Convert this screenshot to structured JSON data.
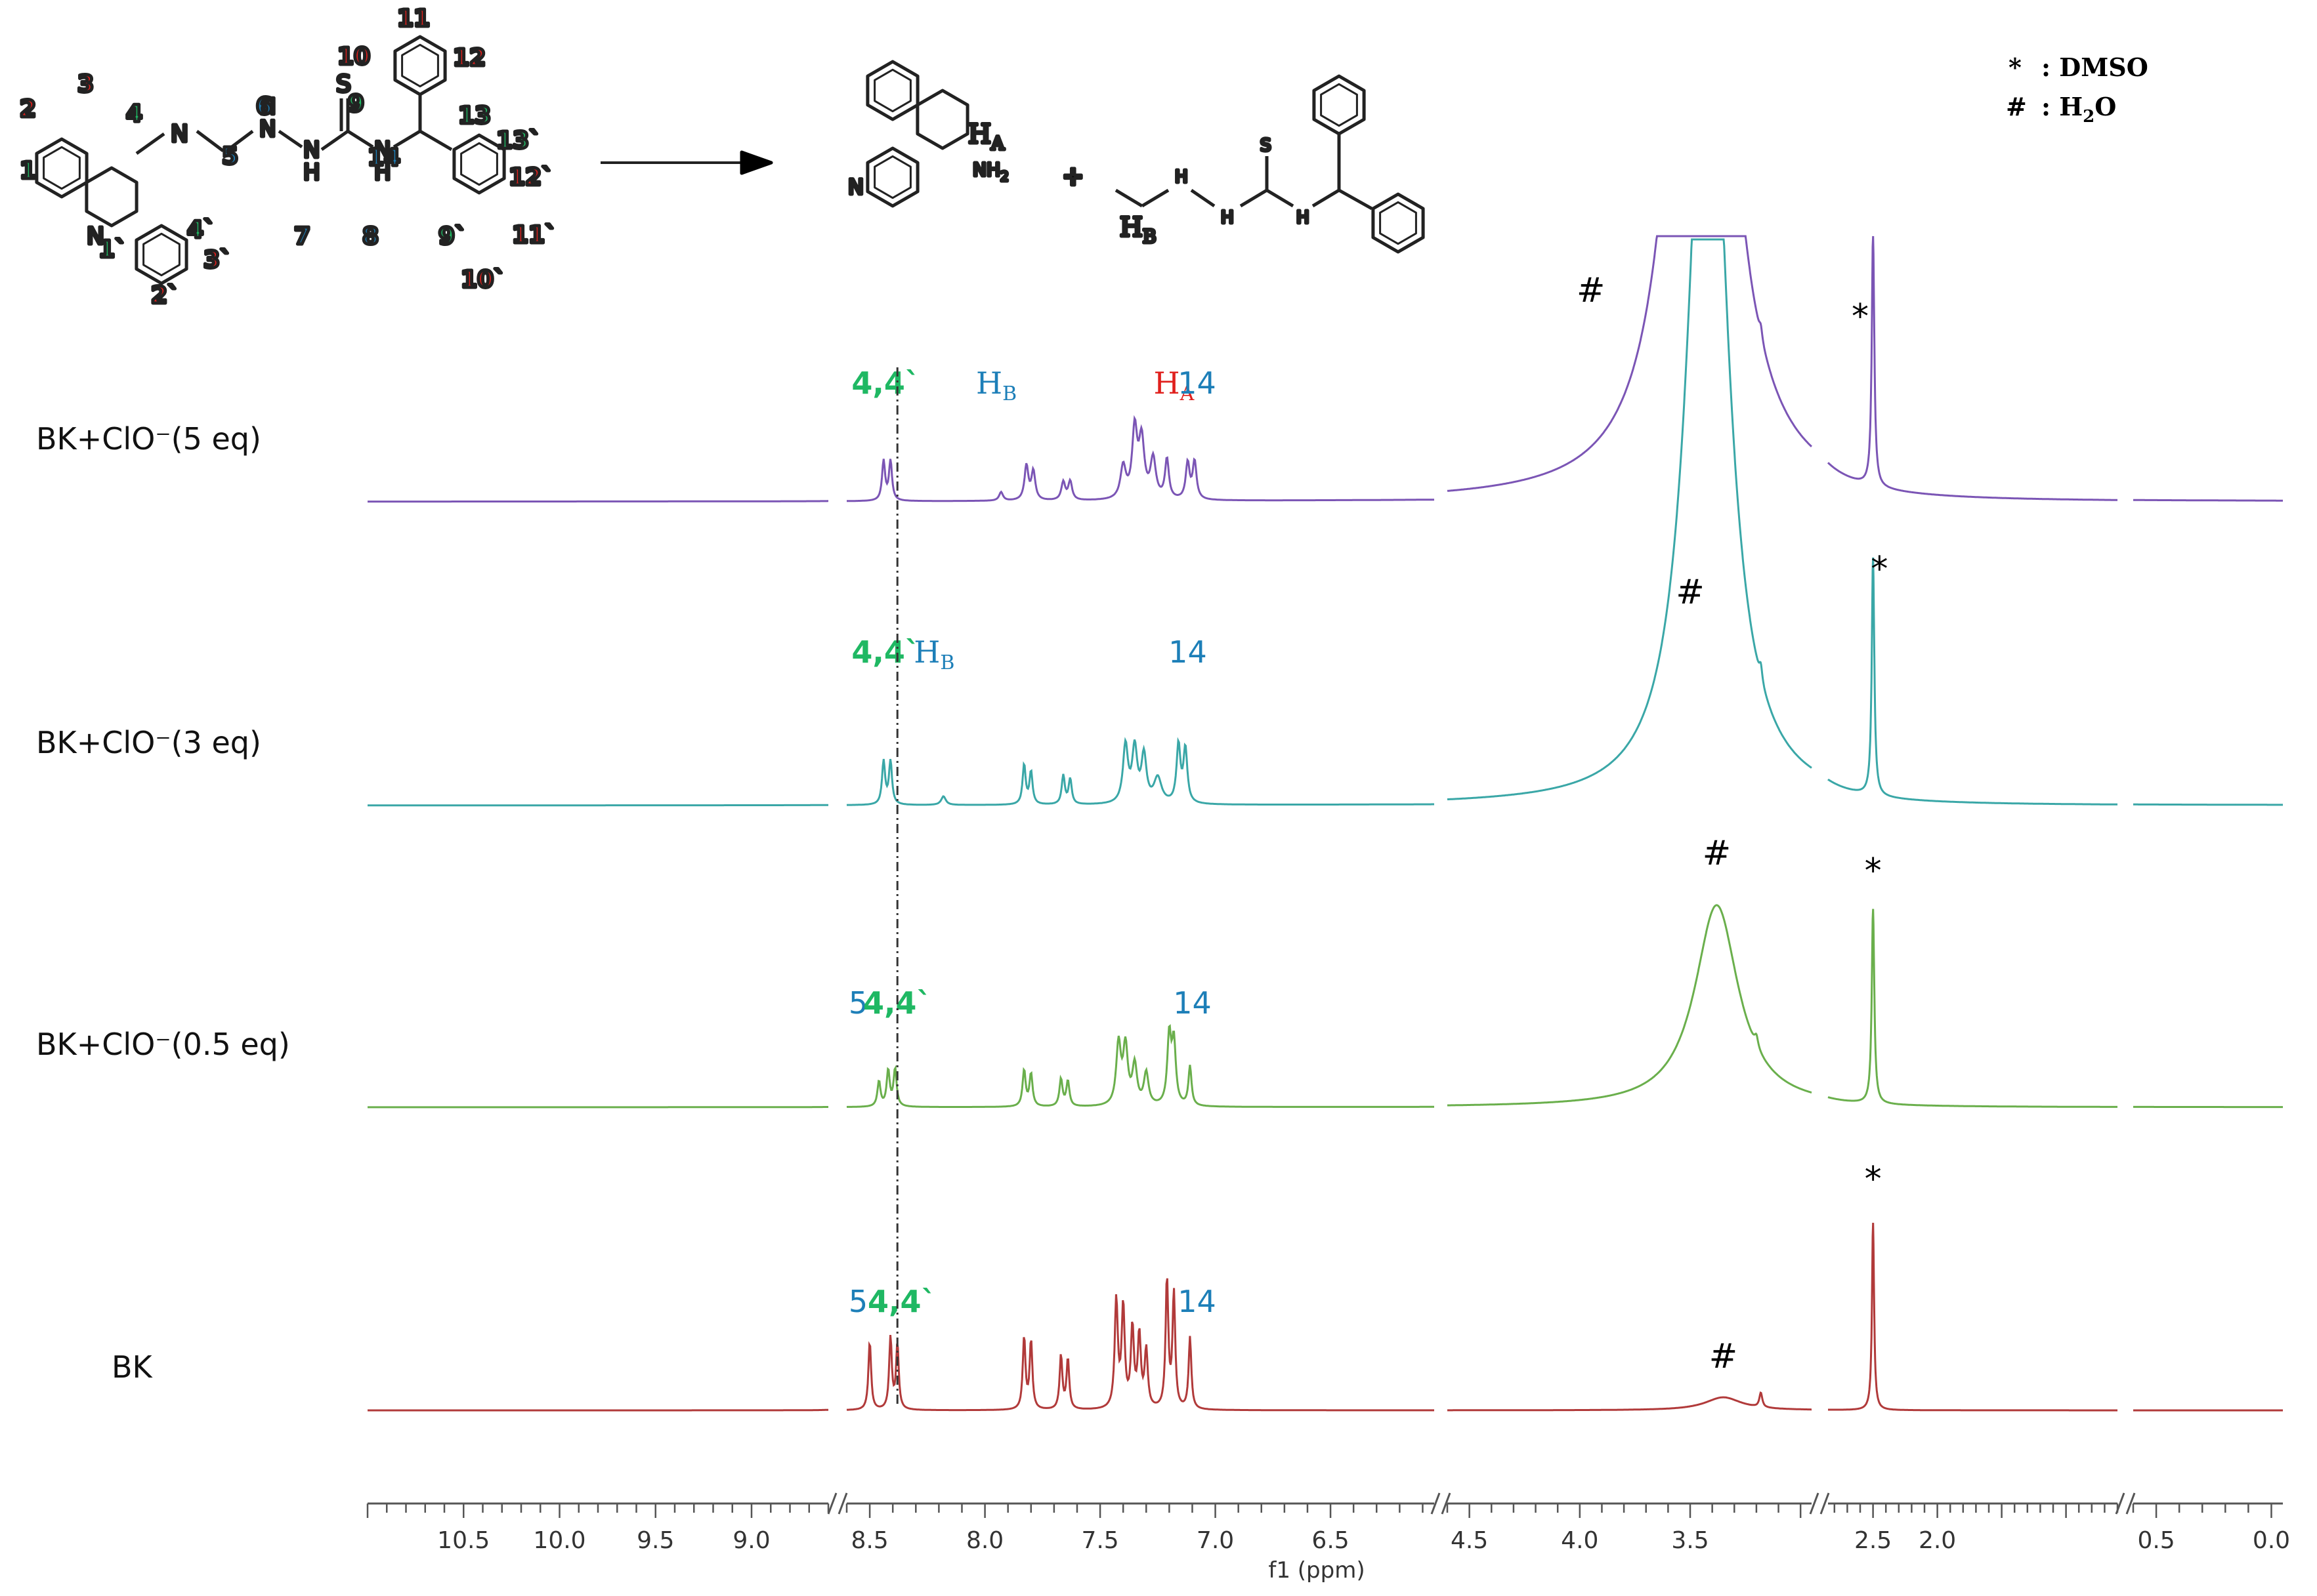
{
  "chart_data": {
    "type": "line",
    "title": "",
    "xlabel": "f1 (ppm)",
    "ylabel": "",
    "x_ticks": [
      "10.5",
      "10.0",
      "9.5",
      "9.0",
      "8.5",
      "8.0",
      "7.5",
      "7.0",
      "6.5",
      "4.5",
      "4.0",
      "3.5",
      "2.5",
      "2.0",
      "0.5",
      "0.0"
    ],
    "x_segments": [
      {
        "from": 11.0,
        "to": 8.6
      },
      {
        "from": 8.6,
        "to": 6.05
      },
      {
        "from": 4.6,
        "to": 2.95
      },
      {
        "from": 2.85,
        "to": 0.6
      },
      {
        "from": 0.6,
        "to": -0.05
      }
    ],
    "dashed_line_ppm": 8.38,
    "legend_notes": [
      {
        "symbol": "*",
        "label": ": DMSO"
      },
      {
        "symbol": "#",
        "label": ": H",
        "sub": "2",
        "suffix": "O"
      }
    ],
    "series": [
      {
        "name": "BK+ClO⁻(5 eq)",
        "color": "#7b55b5",
        "peaks": [
          [
            8.44,
            0.55,
            0.008
          ],
          [
            8.41,
            0.55,
            0.008
          ],
          [
            7.93,
            0.12,
            0.01
          ],
          [
            7.82,
            0.48,
            0.01
          ],
          [
            7.79,
            0.4,
            0.01
          ],
          [
            7.66,
            0.25,
            0.01
          ],
          [
            7.63,
            0.26,
            0.01
          ],
          [
            7.4,
            0.45,
            0.014
          ],
          [
            7.35,
            0.95,
            0.013
          ],
          [
            7.32,
            0.8,
            0.014
          ],
          [
            7.27,
            0.55,
            0.014
          ],
          [
            7.21,
            0.55,
            0.01
          ],
          [
            7.12,
            0.5,
            0.01
          ],
          [
            7.09,
            0.52,
            0.01
          ],
          [
            2.5,
            3.5,
            0.012
          ],
          [
            3.18,
            0.15,
            0.008
          ]
        ],
        "water": [
          3.45,
          14.0,
          0.12
        ],
        "annotations": [
          {
            "text": "4,4`",
            "ppm": 8.43,
            "color": "#1fb863",
            "kind": "peak"
          },
          {
            "text": "H",
            "sub": "B",
            "ppm": 7.95,
            "color": "#1d7fb8",
            "kind": "peak"
          },
          {
            "text": "H",
            "sub": "A",
            "ppm": 7.18,
            "color": "#e0201d",
            "kind": "peak"
          },
          {
            "text": "14",
            "ppm": 7.08,
            "color": "#1d7fb8",
            "kind": "peak"
          },
          {
            "text": "#",
            "ppm": 3.95,
            "color": "#000000",
            "kind": "water"
          },
          {
            "text": "*",
            "ppm": 2.6,
            "color": "#000000",
            "kind": "dmso"
          }
        ]
      },
      {
        "name": "BK+ClO⁻(3 eq)",
        "color": "#3aa7a7",
        "peaks": [
          [
            8.44,
            0.6,
            0.008
          ],
          [
            8.41,
            0.6,
            0.008
          ],
          [
            8.18,
            0.12,
            0.012
          ],
          [
            7.83,
            0.55,
            0.008
          ],
          [
            7.8,
            0.45,
            0.008
          ],
          [
            7.66,
            0.4,
            0.008
          ],
          [
            7.63,
            0.35,
            0.008
          ],
          [
            7.39,
            0.8,
            0.013
          ],
          [
            7.35,
            0.75,
            0.013
          ],
          [
            7.31,
            0.65,
            0.013
          ],
          [
            7.25,
            0.35,
            0.02
          ],
          [
            7.16,
            0.8,
            0.01
          ],
          [
            7.13,
            0.75,
            0.01
          ],
          [
            2.5,
            3.3,
            0.012
          ],
          [
            3.18,
            0.2,
            0.008
          ]
        ],
        "water": [
          3.42,
          12.0,
          0.1
        ],
        "annotations": [
          {
            "text": "4,4`",
            "ppm": 8.43,
            "color": "#1fb863",
            "kind": "peak"
          },
          {
            "text": "H",
            "sub": "B",
            "ppm": 8.22,
            "color": "#1d7fb8",
            "kind": "peak"
          },
          {
            "text": "14",
            "ppm": 7.12,
            "color": "#1d7fb8",
            "kind": "peak"
          },
          {
            "text": "#",
            "ppm": 3.5,
            "color": "#000000",
            "kind": "water"
          },
          {
            "text": "*",
            "ppm": 2.45,
            "color": "#000000",
            "kind": "dmso"
          }
        ]
      },
      {
        "name": "BK+ClO⁻(0.5 eq)",
        "color": "#6aaf4c",
        "peaks": [
          [
            8.46,
            0.35,
            0.008
          ],
          [
            8.42,
            0.5,
            0.008
          ],
          [
            8.39,
            0.52,
            0.008
          ],
          [
            7.83,
            0.5,
            0.008
          ],
          [
            7.8,
            0.45,
            0.008
          ],
          [
            7.67,
            0.38,
            0.008
          ],
          [
            7.64,
            0.35,
            0.008
          ],
          [
            7.42,
            0.85,
            0.012
          ],
          [
            7.39,
            0.8,
            0.012
          ],
          [
            7.35,
            0.55,
            0.012
          ],
          [
            7.3,
            0.45,
            0.012
          ],
          [
            7.2,
            0.95,
            0.01
          ],
          [
            7.18,
            0.85,
            0.01
          ],
          [
            7.11,
            0.55,
            0.008
          ],
          [
            2.5,
            2.7,
            0.012
          ],
          [
            3.2,
            0.15,
            0.01
          ]
        ],
        "water": [
          3.38,
          2.8,
          0.12
        ],
        "annotations": [
          {
            "text": "5",
            "ppm": 8.55,
            "color": "#1d7fb8",
            "kind": "peak"
          },
          {
            "text": "4,4`",
            "ppm": 8.38,
            "color": "#1fb863",
            "kind": "peak"
          },
          {
            "text": "14",
            "ppm": 7.1,
            "color": "#1d7fb8",
            "kind": "peak"
          },
          {
            "text": "#",
            "ppm": 3.38,
            "color": "#000000",
            "kind": "water"
          },
          {
            "text": "*",
            "ppm": 2.5,
            "color": "#000000",
            "kind": "dmso"
          }
        ]
      },
      {
        "name": "BK",
        "color": "#b13a3a",
        "peaks": [
          [
            8.5,
            0.95,
            0.007
          ],
          [
            8.41,
            1.0,
            0.007
          ],
          [
            8.38,
            0.9,
            0.007
          ],
          [
            7.83,
            1.0,
            0.007
          ],
          [
            7.8,
            0.95,
            0.007
          ],
          [
            7.67,
            0.75,
            0.007
          ],
          [
            7.64,
            0.7,
            0.007
          ],
          [
            7.43,
            1.5,
            0.008
          ],
          [
            7.4,
            1.4,
            0.008
          ],
          [
            7.36,
            1.1,
            0.008
          ],
          [
            7.33,
            1.0,
            0.008
          ],
          [
            7.3,
            0.8,
            0.008
          ],
          [
            7.21,
            1.8,
            0.007
          ],
          [
            7.18,
            1.6,
            0.007
          ],
          [
            7.11,
            1.0,
            0.007
          ],
          [
            2.5,
            2.6,
            0.01
          ],
          [
            3.18,
            0.2,
            0.008
          ]
        ],
        "water": [
          3.35,
          0.18,
          0.1
        ],
        "annotations": [
          {
            "text": "5",
            "ppm": 8.55,
            "color": "#1d7fb8",
            "kind": "peak"
          },
          {
            "text": "4,4`",
            "ppm": 8.36,
            "color": "#1fb863",
            "kind": "peak"
          },
          {
            "text": "14",
            "ppm": 7.08,
            "color": "#1d7fb8",
            "kind": "peak"
          },
          {
            "text": "#",
            "ppm": 3.35,
            "color": "#000000",
            "kind": "water"
          },
          {
            "text": "*",
            "ppm": 2.5,
            "color": "#000000",
            "kind": "dmso"
          }
        ]
      }
    ]
  },
  "scheme": {
    "reactant_labels": [
      {
        "text": "1",
        "color": "#1fb863"
      },
      {
        "text": "2",
        "color": "#e0201d"
      },
      {
        "text": "3",
        "color": "#e0201d"
      },
      {
        "text": "4",
        "color": "#1fb863"
      },
      {
        "text": "5",
        "color": "#1d7fb8"
      },
      {
        "text": "6",
        "color": "#1d7fb8"
      },
      {
        "text": "7",
        "color": "#1d7fb8"
      },
      {
        "text": "8",
        "color": "#1d7fb8"
      },
      {
        "text": "9",
        "color": "#1fb863"
      },
      {
        "text": "10",
        "color": "#e0201d"
      },
      {
        "text": "11",
        "color": "#e0201d"
      },
      {
        "text": "12",
        "color": "#e0201d"
      },
      {
        "text": "13",
        "color": "#1fb863"
      },
      {
        "text": "14",
        "color": "#1d7fb8"
      },
      {
        "text": "1`",
        "color": "#1fb863"
      },
      {
        "text": "2`",
        "color": "#e0201d"
      },
      {
        "text": "3`",
        "color": "#e0201d"
      },
      {
        "text": "4`",
        "color": "#1fb863"
      },
      {
        "text": "9`",
        "color": "#1fb863"
      },
      {
        "text": "10`",
        "color": "#e0201d"
      },
      {
        "text": "11`",
        "color": "#e0201d"
      },
      {
        "text": "12`",
        "color": "#e0201d"
      },
      {
        "text": "13`",
        "color": "#1fb863"
      }
    ],
    "atoms": {
      "N": "N",
      "S": "S",
      "H": "H",
      "NH2": "NH",
      "NH2_sub": "2"
    },
    "product_labels": {
      "HA": "H",
      "HA_sub": "A",
      "HB": "H",
      "HB_sub": "B",
      "plus": "+"
    }
  }
}
